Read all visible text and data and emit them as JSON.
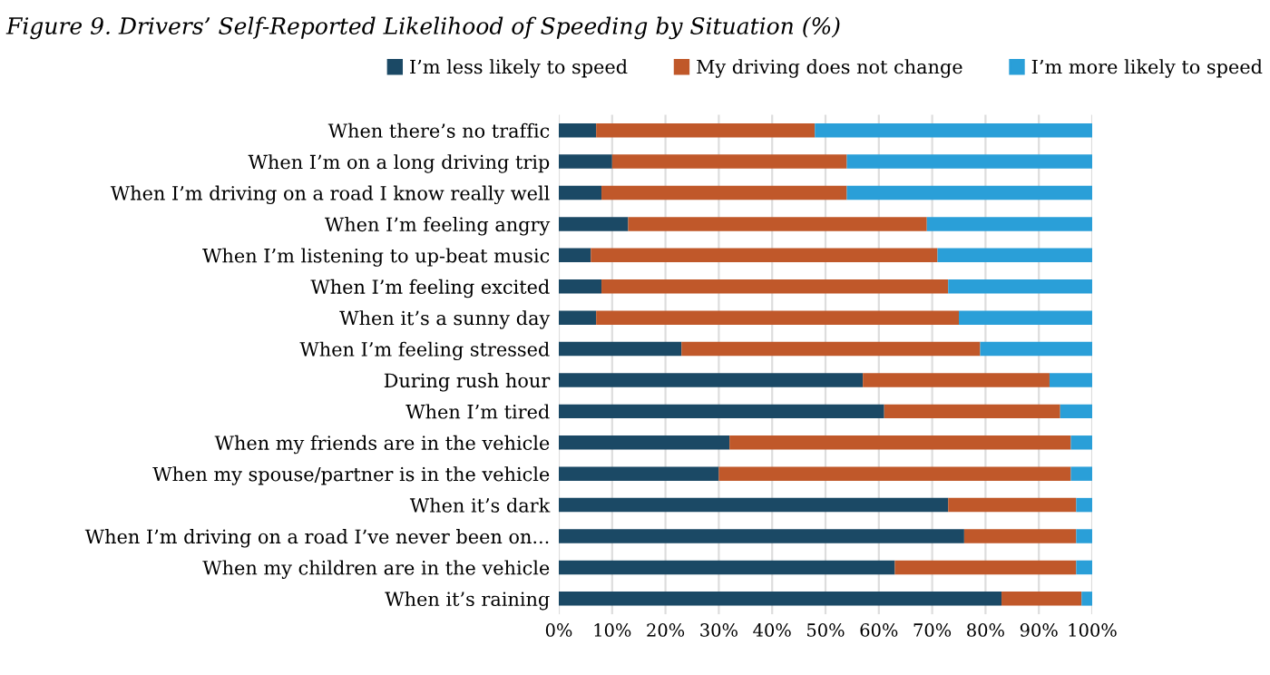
{
  "chart_data": {
    "type": "bar",
    "orientation": "horizontal",
    "stacked": true,
    "title": "Figure 9. Drivers’ Self-Reported Likelihood of Speeding by Situation (%)",
    "categories": [
      "When there’s no traffic",
      "When I’m on a long driving trip",
      "When I’m driving on a road I know really well",
      "When I’m feeling angry",
      "When I’m listening to up-beat music",
      "When I’m feeling excited",
      "When it’s a sunny day",
      "When I’m feeling stressed",
      "During rush hour",
      "When I’m tired",
      "When my friends are in the vehicle",
      "When my spouse/partner is in the vehicle",
      "When it’s dark",
      "When I’m driving on a road I’ve never been on...",
      "When my children are in the vehicle",
      "When it’s raining"
    ],
    "series": [
      {
        "name": "I’m less likely to speed",
        "color": "#1b4965",
        "values": [
          7,
          10,
          8,
          13,
          6,
          8,
          7,
          23,
          57,
          61,
          32,
          30,
          73,
          76,
          63,
          83
        ]
      },
      {
        "name": "My driving does not change",
        "color": "#c0582a",
        "values": [
          41,
          44,
          46,
          56,
          65,
          65,
          68,
          56,
          35,
          33,
          64,
          66,
          24,
          21,
          34,
          15
        ]
      },
      {
        "name": "I’m more likely to speed",
        "color": "#2a9fd8",
        "values": [
          52,
          46,
          46,
          31,
          29,
          27,
          25,
          21,
          8,
          6,
          4,
          4,
          3,
          3,
          3,
          2
        ]
      }
    ],
    "xlim": [
      0,
      100
    ],
    "xticks": [
      {
        "value": 0,
        "label": "0%"
      },
      {
        "value": 10,
        "label": "10%"
      },
      {
        "value": 20,
        "label": "20%"
      },
      {
        "value": 30,
        "label": "30%"
      },
      {
        "value": 40,
        "label": "40%"
      },
      {
        "value": 50,
        "label": "50%"
      },
      {
        "value": 60,
        "label": "60%"
      },
      {
        "value": 70,
        "label": "70%"
      },
      {
        "value": 80,
        "label": "80%"
      },
      {
        "value": 90,
        "label": "90%"
      },
      {
        "value": 100,
        "label": "100%"
      }
    ],
    "grid": "x",
    "legend": "top"
  }
}
